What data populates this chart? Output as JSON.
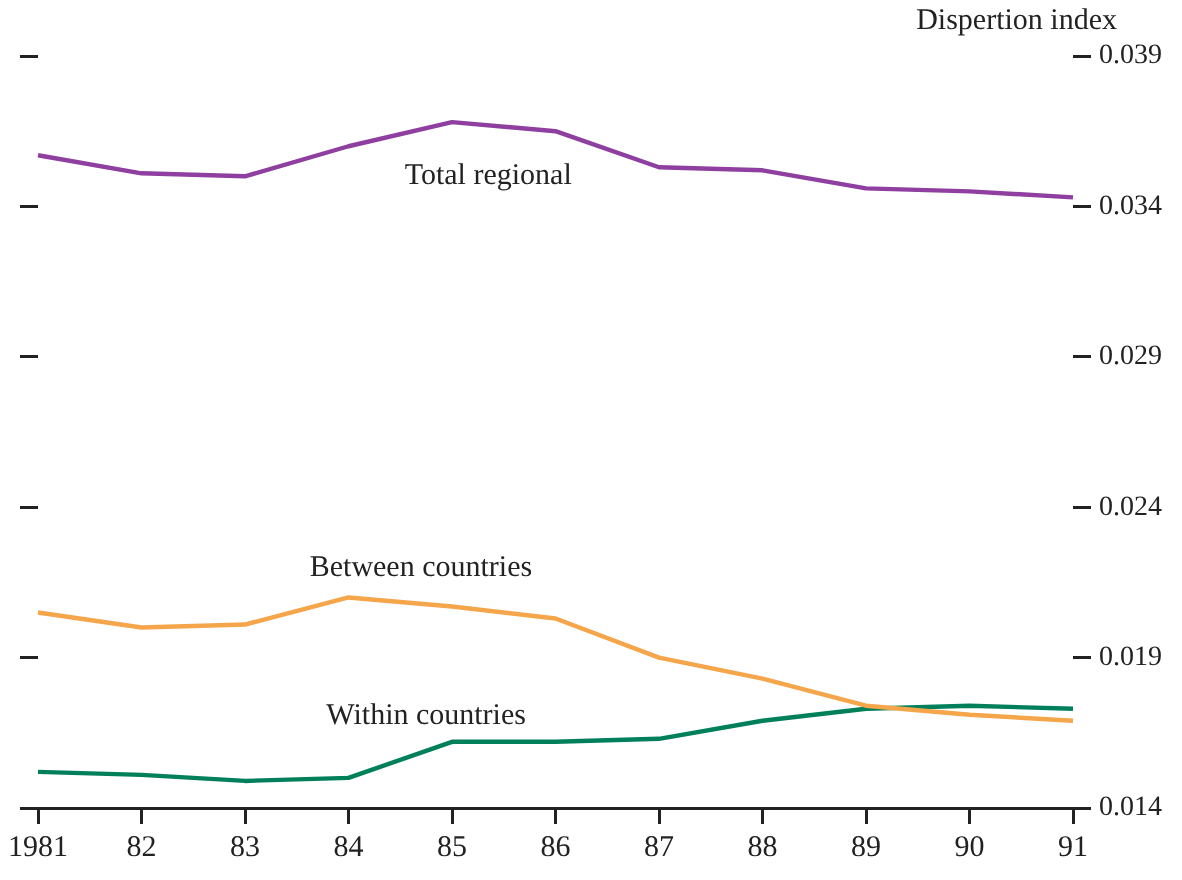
{
  "chart_data": {
    "type": "line",
    "ylabel": "Dispertion index",
    "categories": [
      "1981",
      "82",
      "83",
      "84",
      "85",
      "86",
      "87",
      "88",
      "89",
      "90",
      "91"
    ],
    "ylim": [
      0.014,
      0.039
    ],
    "yticks": [
      0.014,
      0.019,
      0.024,
      0.029,
      0.034,
      0.039
    ],
    "grid": false,
    "legend": false,
    "marker": "none",
    "line_style": "solid",
    "series": [
      {
        "name": "Total regional",
        "color": "#8e3fa0",
        "values": [
          0.0357,
          0.0351,
          0.035,
          0.036,
          0.0368,
          0.0365,
          0.0353,
          0.0352,
          0.0346,
          0.0345,
          0.0343
        ]
      },
      {
        "name": "Between countries",
        "color": "#f5a54a",
        "values": [
          0.0205,
          0.02,
          0.0201,
          0.021,
          0.0207,
          0.0203,
          0.019,
          0.0183,
          0.0174,
          0.0171,
          0.0169
        ]
      },
      {
        "name": "Within countries",
        "color": "#00805a",
        "values": [
          0.0152,
          0.0151,
          0.0149,
          0.015,
          0.0162,
          0.0162,
          0.0163,
          0.0169,
          0.0173,
          0.0174,
          0.0173
        ]
      }
    ]
  }
}
